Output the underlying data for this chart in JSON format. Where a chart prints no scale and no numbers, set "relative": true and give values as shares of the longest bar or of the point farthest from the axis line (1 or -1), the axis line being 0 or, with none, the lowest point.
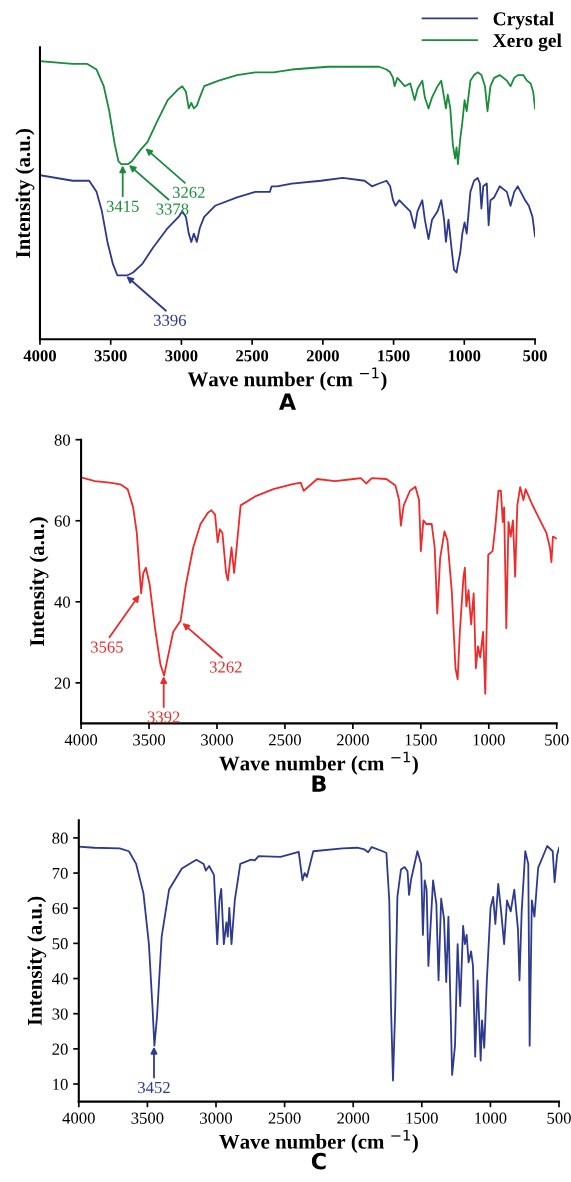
{
  "chart_data": [
    {
      "type": "line",
      "title": "A",
      "xlabel": "Wave number (cm $^{−1}$)",
      "ylabel": "Intensity (a.u.)",
      "relative": true,
      "tick_labels": "x",
      "legend": "top right",
      "xlim": [
        4000,
        500
      ],
      "xticks": [
        4000,
        3500,
        3000,
        2500,
        2000,
        1500,
        1000,
        500
      ],
      "series": [
        {
          "name": "Crystal",
          "color": "#2b3990",
          "x": [
            4000,
            3768,
            3652,
            3600,
            3562,
            3523,
            3484,
            3453,
            3420,
            3381,
            3342,
            3278,
            3200,
            3097,
            3020,
            2994,
            2968,
            2948,
            2930,
            2912,
            2891,
            2870,
            2839,
            2762,
            2607,
            2478,
            2375,
            2362,
            2324,
            2220,
            2014,
            1859,
            1705,
            1653,
            1602,
            1550,
            1524,
            1504,
            1486,
            1460,
            1421,
            1382,
            1351,
            1331,
            1297,
            1279,
            1253,
            1228,
            1189,
            1163,
            1143,
            1130,
            1112,
            1091,
            1073,
            1055,
            1045,
            1029,
            1014,
            998,
            983,
            957,
            931,
            905,
            890,
            879,
            866,
            841,
            828,
            815,
            789,
            750,
            699,
            673,
            647,
            622,
            591,
            570,
            544,
            518,
            500
          ],
          "values": [
            0.59,
            0.57,
            0.57,
            0.53,
            0.46,
            0.35,
            0.27,
            0.23,
            0.23,
            0.23,
            0.24,
            0.27,
            0.33,
            0.4,
            0.44,
            0.46,
            0.44,
            0.38,
            0.35,
            0.38,
            0.35,
            0.4,
            0.44,
            0.48,
            0.51,
            0.53,
            0.53,
            0.55,
            0.55,
            0.56,
            0.57,
            0.58,
            0.57,
            0.55,
            0.56,
            0.57,
            0.55,
            0.5,
            0.48,
            0.5,
            0.48,
            0.46,
            0.4,
            0.46,
            0.5,
            0.43,
            0.36,
            0.43,
            0.46,
            0.5,
            0.43,
            0.35,
            0.43,
            0.33,
            0.25,
            0.24,
            0.27,
            0.31,
            0.38,
            0.42,
            0.38,
            0.53,
            0.57,
            0.58,
            0.56,
            0.47,
            0.55,
            0.56,
            0.41,
            0.5,
            0.51,
            0.55,
            0.53,
            0.48,
            0.53,
            0.55,
            0.52,
            0.5,
            0.48,
            0.44,
            0.37
          ]
        },
        {
          "name": "Xero gel",
          "color": "#1a8c3c",
          "x": [
            4000,
            3768,
            3665,
            3600,
            3549,
            3510,
            3471,
            3445,
            3425,
            3407,
            3391,
            3376,
            3350,
            3291,
            3239,
            3175,
            3097,
            3020,
            2994,
            2968,
            2948,
            2930,
            2912,
            2891,
            2870,
            2839,
            2736,
            2607,
            2478,
            2349,
            2220,
            1963,
            1834,
            1705,
            1602,
            1550,
            1524,
            1504,
            1493,
            1473,
            1421,
            1382,
            1351,
            1331,
            1297,
            1279,
            1253,
            1228,
            1189,
            1163,
            1143,
            1130,
            1117,
            1099,
            1081,
            1065,
            1055,
            1045,
            1029,
            1014,
            998,
            983,
            957,
            931,
            905,
            879,
            854,
            836,
            815,
            789,
            750,
            699,
            673,
            647,
            622,
            583,
            557,
            531,
            513,
            500
          ],
          "values": [
            1.0,
            0.99,
            0.99,
            0.97,
            0.91,
            0.82,
            0.7,
            0.64,
            0.63,
            0.63,
            0.63,
            0.63,
            0.64,
            0.68,
            0.71,
            0.78,
            0.86,
            0.9,
            0.91,
            0.89,
            0.83,
            0.85,
            0.83,
            0.84,
            0.87,
            0.91,
            0.93,
            0.95,
            0.96,
            0.96,
            0.97,
            0.98,
            0.98,
            0.98,
            0.98,
            0.97,
            0.96,
            0.94,
            0.91,
            0.94,
            0.91,
            0.92,
            0.86,
            0.9,
            0.93,
            0.87,
            0.83,
            0.87,
            0.91,
            0.93,
            0.87,
            0.83,
            0.88,
            0.83,
            0.7,
            0.65,
            0.69,
            0.63,
            0.72,
            0.78,
            0.86,
            0.82,
            0.93,
            0.95,
            0.96,
            0.95,
            0.91,
            0.82,
            0.91,
            0.94,
            0.95,
            0.93,
            0.91,
            0.94,
            0.95,
            0.95,
            0.93,
            0.92,
            0.89,
            0.83
          ]
        }
      ],
      "annotations": [
        {
          "text": "3415",
          "x": 3415,
          "y": 0.63
        },
        {
          "text": "3378",
          "x": 3378,
          "y": 0.63
        },
        {
          "text": "3262",
          "x": 3262,
          "y": 0.69
        },
        {
          "text": "3396",
          "x": 3396,
          "y": 0.23
        }
      ]
    },
    {
      "type": "line",
      "title": "B",
      "xlabel": "Wave number (cm $^{−1}$)",
      "ylabel": "Intensity (a.u.)",
      "xlim": [
        4000,
        500
      ],
      "xticks": [
        4000,
        3500,
        3000,
        2500,
        2000,
        1500,
        1000,
        500
      ],
      "ylim": [
        10,
        80
      ],
      "yticks": [
        20,
        40,
        60,
        80
      ],
      "series": [
        {
          "color": "#ee2b2b",
          "x": [
            4000,
            3898,
            3791,
            3711,
            3657,
            3617,
            3590,
            3571,
            3558,
            3542,
            3523,
            3496,
            3456,
            3416,
            3389,
            3362,
            3322,
            3268,
            3228,
            3175,
            3121,
            3067,
            3041,
            3014,
            2995,
            2979,
            2960,
            2933,
            2920,
            2893,
            2874,
            2858,
            2826,
            2719,
            2585,
            2451,
            2384,
            2362,
            2317,
            2263,
            2130,
            1995,
            1942,
            1902,
            1861,
            1754,
            1687,
            1660,
            1647,
            1626,
            1580,
            1540,
            1513,
            1500,
            1481,
            1460,
            1420,
            1398,
            1379,
            1358,
            1326,
            1304,
            1272,
            1245,
            1229,
            1213,
            1186,
            1176,
            1165,
            1149,
            1130,
            1111,
            1095,
            1079,
            1063,
            1042,
            1026,
            1004,
            972,
            951,
            929,
            911,
            897,
            887,
            871,
            855,
            839,
            822,
            806,
            790,
            769,
            745,
            729,
            683,
            630,
            576,
            550,
            539,
            528,
            500
          ],
          "values": [
            70.7,
            69.8,
            69.4,
            69.0,
            67.8,
            63.3,
            57.0,
            48.0,
            42.1,
            47.1,
            48.4,
            44.4,
            33.5,
            24.5,
            21.8,
            26.3,
            32.6,
            35.3,
            44.4,
            53.4,
            59.2,
            62.0,
            62.6,
            61.5,
            54.7,
            57.9,
            57.0,
            47.1,
            45.3,
            53.4,
            47.1,
            52.5,
            63.8,
            66.0,
            67.8,
            69.0,
            69.4,
            67.4,
            68.7,
            70.3,
            69.8,
            70.3,
            70.5,
            69.2,
            70.5,
            70.3,
            68.7,
            65.1,
            58.8,
            63.8,
            67.4,
            68.4,
            65.1,
            52.5,
            60.1,
            59.2,
            59.2,
            53.4,
            37.1,
            50.7,
            57.4,
            55.2,
            42.5,
            23.6,
            20.9,
            32.6,
            46.2,
            48.4,
            38.9,
            42.9,
            34.4,
            42.1,
            23.6,
            29.0,
            26.3,
            32.6,
            17.3,
            51.6,
            52.5,
            58.8,
            67.4,
            67.4,
            59.7,
            63.3,
            33.5,
            59.7,
            56.1,
            60.1,
            46.2,
            63.8,
            68.3,
            65.1,
            67.8,
            64.2,
            60.6,
            57.0,
            53.4,
            49.8,
            56.1,
            55.6
          ]
        }
      ],
      "annotations": [
        {
          "text": "3565",
          "x": 3565,
          "y": 42
        },
        {
          "text": "3392",
          "x": 3392,
          "y": 22
        },
        {
          "text": "3262",
          "x": 3262,
          "y": 35
        }
      ]
    },
    {
      "type": "line",
      "title": "C",
      "xlabel": "Wave number (cm $^{−1}$)",
      "ylabel": "Intensity (a.u.)",
      "xlim": [
        4000,
        500
      ],
      "xticks": [
        4000,
        3500,
        3000,
        2500,
        2000,
        1500,
        1000,
        500
      ],
      "ylim": [
        5,
        85
      ],
      "yticks": [
        10,
        20,
        30,
        40,
        50,
        60,
        70,
        80
      ],
      "series": [
        {
          "color": "#2e3a8f",
          "x": [
            4000,
            3888,
            3702,
            3635,
            3582,
            3529,
            3489,
            3462,
            3449,
            3430,
            3396,
            3342,
            3249,
            3143,
            3090,
            3074,
            3050,
            3015,
            2991,
            2975,
            2962,
            2943,
            2924,
            2914,
            2903,
            2887,
            2863,
            2823,
            2744,
            2717,
            2690,
            2530,
            2397,
            2370,
            2354,
            2338,
            2291,
            2078,
            1971,
            1918,
            1891,
            1865,
            1785,
            1758,
            1737,
            1724,
            1710,
            1694,
            1678,
            1652,
            1625,
            1604,
            1593,
            1577,
            1532,
            1505,
            1492,
            1479,
            1465,
            1452,
            1418,
            1394,
            1378,
            1359,
            1338,
            1322,
            1306,
            1279,
            1258,
            1239,
            1220,
            1199,
            1186,
            1173,
            1159,
            1141,
            1127,
            1111,
            1093,
            1071,
            1061,
            1045,
            1026,
            999,
            980,
            964,
            943,
            922,
            900,
            879,
            852,
            826,
            799,
            788,
            772,
            746,
            724,
            714,
            698,
            679,
            652,
            586,
            546,
            532,
            514,
            500
          ],
          "values": [
            77.5,
            77.2,
            77.0,
            76.2,
            72.6,
            64.3,
            49.8,
            31.2,
            20.9,
            29.1,
            51.9,
            65.3,
            71.3,
            73.8,
            72.6,
            70.7,
            72.0,
            69.5,
            49.8,
            62.2,
            65.5,
            49.8,
            56.0,
            51.9,
            60.1,
            49.8,
            62.2,
            72.6,
            73.8,
            73.6,
            74.8,
            74.6,
            76.0,
            67.9,
            70.0,
            68.9,
            76.2,
            77.0,
            77.2,
            76.7,
            75.9,
            77.4,
            76.2,
            75.7,
            62.2,
            31.2,
            11.0,
            31.2,
            63.2,
            71.0,
            71.7,
            70.5,
            63.8,
            68.4,
            76.2,
            72.6,
            52.4,
            67.9,
            65.3,
            43.6,
            67.9,
            61.2,
            39.5,
            62.7,
            57.0,
            39.0,
            57.6,
            12.6,
            20.9,
            49.8,
            32.2,
            55.0,
            49.8,
            52.4,
            44.6,
            47.7,
            43.6,
            17.8,
            39.5,
            16.7,
            28.1,
            20.3,
            39.5,
            60.1,
            63.2,
            55.5,
            66.9,
            59.1,
            49.8,
            62.2,
            59.1,
            65.3,
            53.9,
            39.5,
            59.1,
            76.2,
            72.6,
            20.9,
            62.2,
            57.6,
            71.5,
            77.7,
            76.2,
            67.4,
            75.1,
            77.2
          ]
        }
      ],
      "annotations": [
        {
          "text": "3452",
          "x": 3452,
          "y": 21
        }
      ]
    }
  ]
}
